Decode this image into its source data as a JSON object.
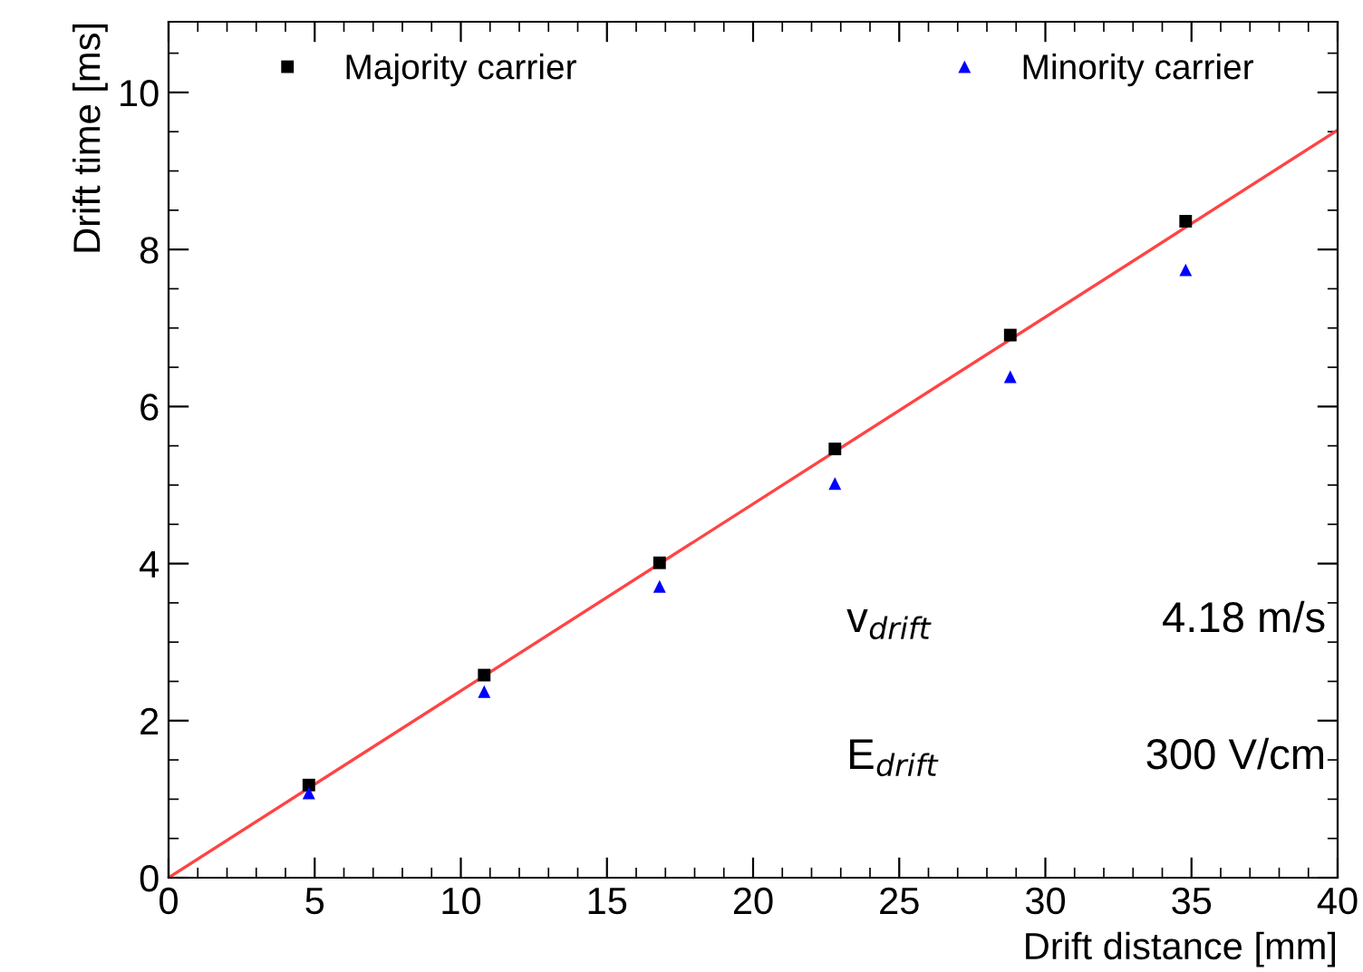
{
  "chart_data": {
    "type": "scatter",
    "xlabel": "Drift distance [mm]",
    "ylabel": "Drift time [ms]",
    "xlim": [
      0,
      40
    ],
    "xticks": [
      0,
      5,
      10,
      15,
      20,
      25,
      30,
      35,
      40
    ],
    "ylim": [
      0,
      10.9
    ],
    "yticks": [
      0,
      2,
      4,
      6,
      8,
      10
    ],
    "legend": "top",
    "grid": false,
    "series": [
      {
        "name": "Majority carrier",
        "color": "#000000",
        "marker": "square",
        "x": [
          4.8,
          10.8,
          16.8,
          22.8,
          28.8,
          34.8
        ],
        "values": [
          1.18,
          2.58,
          4.01,
          5.46,
          6.91,
          8.36
        ]
      },
      {
        "name": "Minority carrier",
        "color": "#0000ff",
        "marker": "triangle",
        "x": [
          4.8,
          10.8,
          16.8,
          22.8,
          28.8,
          34.8
        ],
        "values": [
          1.08,
          2.37,
          3.71,
          5.02,
          6.38,
          7.74
        ]
      },
      {
        "type": "line",
        "color": "#ff4444",
        "x": [
          0,
          40
        ],
        "values": [
          0,
          9.52
        ]
      }
    ],
    "annotations": [
      "v$_{drift}$",
      "4.18 m/s",
      "E$_{drift}$",
      "300 V/cm"
    ]
  }
}
